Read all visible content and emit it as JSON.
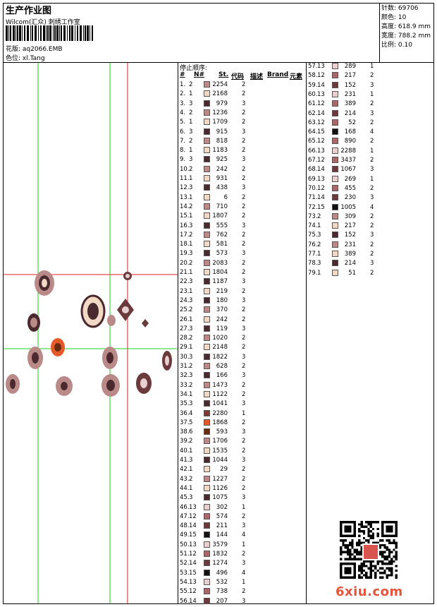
{
  "header": {
    "title": "生产作业图",
    "subtitle": "Wilcom(汇众) 刺绣工作室",
    "pattern_label": "花版:",
    "pattern_value": "aq2066.EMB",
    "color_label": "色位:",
    "color_value": "xl.Tang"
  },
  "stats": {
    "stitches": "针数: 69706",
    "colors": "颜色: 10",
    "height": "高度: 618.9 mm",
    "width": "宽度: 788.2 mm",
    "scale": "比例: 0.10"
  },
  "list": {
    "stop_order_label": "停止顺序:",
    "col_index": "#",
    "col_n": "N#",
    "col_st": "St.",
    "col_code": "代码",
    "col_desc": "描述",
    "col_brand": "Brand",
    "col_element": "元素"
  },
  "colors": {
    "1": "#f1d9c6",
    "2": "#b98a87",
    "3": "#4a2a2e",
    "4": "#7a3b35",
    "5": "#e45a2a",
    "6": "#6a2a10",
    "12": "#a8686a",
    "13": "#e8cfd0",
    "14": "#6b3a3c",
    "15": "#141010"
  },
  "rows_left": [
    [
      "1.",
      "2",
      "2254",
      "2"
    ],
    [
      "2.",
      "1",
      "2168",
      "2"
    ],
    [
      "3.",
      "3",
      "979",
      "3"
    ],
    [
      "4.",
      "2",
      "1236",
      "2"
    ],
    [
      "5.",
      "1",
      "1709",
      "2"
    ],
    [
      "6.",
      "3",
      "915",
      "3"
    ],
    [
      "7.",
      "2",
      "818",
      "2"
    ],
    [
      "8.",
      "1",
      "1183",
      "2"
    ],
    [
      "9.",
      "3",
      "925",
      "3"
    ],
    [
      "10.",
      "2",
      "242",
      "2"
    ],
    [
      "11.",
      "1",
      "931",
      "2"
    ],
    [
      "12.",
      "3",
      "438",
      "3"
    ],
    [
      "13.",
      "1",
      "6",
      "2"
    ],
    [
      "14.",
      "2",
      "710",
      "2"
    ],
    [
      "15.",
      "1",
      "1807",
      "2"
    ],
    [
      "16.",
      "3",
      "555",
      "3"
    ],
    [
      "17.",
      "2",
      "762",
      "2"
    ],
    [
      "18.",
      "1",
      "581",
      "2"
    ],
    [
      "19.",
      "3",
      "573",
      "3"
    ],
    [
      "20.",
      "2",
      "2083",
      "2"
    ],
    [
      "21.",
      "1",
      "1804",
      "2"
    ],
    [
      "22.",
      "3",
      "1187",
      "3"
    ],
    [
      "23.",
      "1",
      "219",
      "2"
    ],
    [
      "24.",
      "3",
      "180",
      "3"
    ],
    [
      "25.",
      "2",
      "370",
      "2"
    ],
    [
      "26.",
      "1",
      "242",
      "2"
    ],
    [
      "27.",
      "3",
      "119",
      "3"
    ],
    [
      "28.",
      "2",
      "1020",
      "2"
    ],
    [
      "29.",
      "1",
      "2148",
      "2"
    ],
    [
      "30.",
      "3",
      "1822",
      "3"
    ],
    [
      "31.",
      "2",
      "628",
      "2"
    ],
    [
      "32.",
      "3",
      "166",
      "3"
    ],
    [
      "33.",
      "2",
      "1473",
      "2"
    ],
    [
      "34.",
      "1",
      "1122",
      "2"
    ],
    [
      "35.",
      "3",
      "1041",
      "3"
    ],
    [
      "36.",
      "4",
      "2280",
      "1"
    ],
    [
      "37.",
      "5",
      "1868",
      "2"
    ],
    [
      "38.",
      "6",
      "593",
      "3"
    ],
    [
      "39.",
      "2",
      "1706",
      "2"
    ],
    [
      "40.",
      "1",
      "1535",
      "2"
    ],
    [
      "41.",
      "3",
      "1044",
      "3"
    ],
    [
      "42.",
      "1",
      "29",
      "2"
    ],
    [
      "43.",
      "2",
      "1227",
      "2"
    ],
    [
      "44.",
      "1",
      "1126",
      "2"
    ],
    [
      "45.",
      "3",
      "1075",
      "3"
    ],
    [
      "46.",
      "13",
      "302",
      "1"
    ],
    [
      "47.",
      "12",
      "574",
      "2"
    ],
    [
      "48.",
      "14",
      "211",
      "3"
    ],
    [
      "49.",
      "15",
      "144",
      "4"
    ],
    [
      "50.",
      "13",
      "3579",
      "1"
    ],
    [
      "51.",
      "12",
      "1832",
      "2"
    ],
    [
      "52.",
      "14",
      "1274",
      "3"
    ],
    [
      "53.",
      "15",
      "496",
      "4"
    ],
    [
      "54.",
      "13",
      "532",
      "1"
    ],
    [
      "55.",
      "12",
      "738",
      "2"
    ],
    [
      "56.",
      "14",
      "207",
      "3"
    ]
  ],
  "rows_right": [
    [
      "57.",
      "13",
      "289",
      "1"
    ],
    [
      "58.",
      "12",
      "217",
      "2"
    ],
    [
      "59.",
      "14",
      "152",
      "3"
    ],
    [
      "60.",
      "13",
      "231",
      "1"
    ],
    [
      "61.",
      "12",
      "389",
      "2"
    ],
    [
      "62.",
      "14",
      "214",
      "3"
    ],
    [
      "63.",
      "12",
      "52",
      "2"
    ],
    [
      "64.",
      "15",
      "168",
      "4"
    ],
    [
      "65.",
      "12",
      "890",
      "2"
    ],
    [
      "66.",
      "13",
      "2288",
      "1"
    ],
    [
      "67.",
      "12",
      "3437",
      "2"
    ],
    [
      "68.",
      "14",
      "1067",
      "3"
    ],
    [
      "69.",
      "13",
      "269",
      "1"
    ],
    [
      "70.",
      "12",
      "455",
      "2"
    ],
    [
      "71.",
      "14",
      "230",
      "3"
    ],
    [
      "72.",
      "15",
      "1005",
      "4"
    ],
    [
      "73.",
      "2",
      "309",
      "2"
    ],
    [
      "74.",
      "1",
      "217",
      "2"
    ],
    [
      "75.",
      "3",
      "152",
      "3"
    ],
    [
      "76.",
      "2",
      "231",
      "2"
    ],
    [
      "77.",
      "1",
      "389",
      "2"
    ],
    [
      "78.",
      "3",
      "214",
      "3"
    ],
    [
      "79.",
      "1",
      "51",
      "2"
    ]
  ],
  "watermark": "6xiu.com"
}
